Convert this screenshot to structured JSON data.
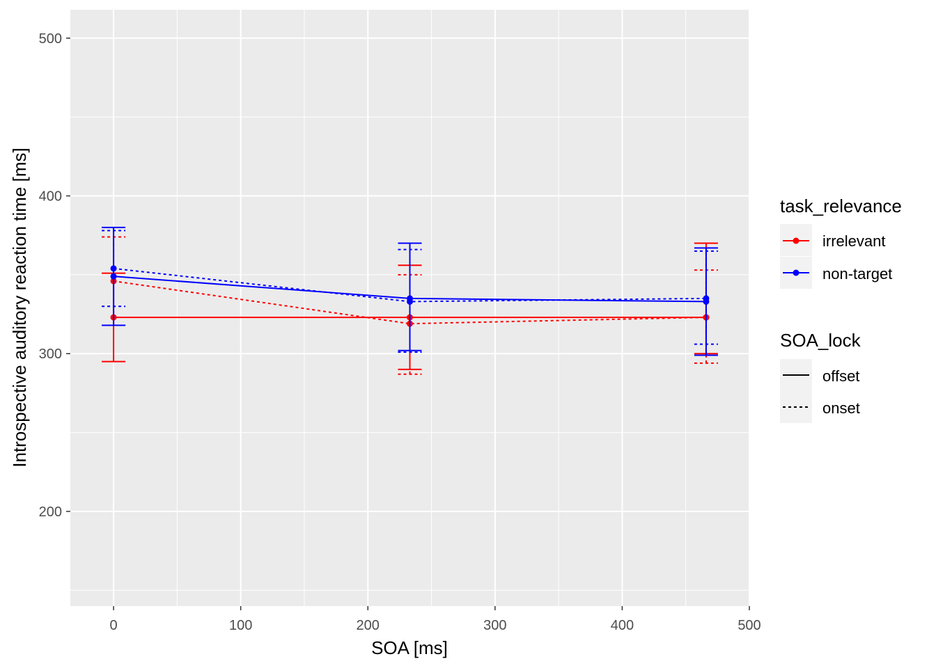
{
  "chart_data": {
    "type": "line",
    "title": "",
    "xlabel": "SOA [ms]",
    "ylabel": "Introspective auditory reaction time [ms]",
    "xlim": [
      -34,
      500
    ],
    "ylim": [
      140,
      518
    ],
    "x_ticks": [
      0,
      100,
      200,
      300,
      400,
      500
    ],
    "x_tick_labels": [
      "0",
      "100",
      "200",
      "300",
      "400",
      "500"
    ],
    "y_ticks": [
      200,
      300,
      400,
      500
    ],
    "y_tick_labels": [
      "200",
      "300",
      "400",
      "500"
    ],
    "grid": true,
    "legend": {
      "placement": "right",
      "task_relevance": {
        "title": "task_relevance",
        "items": [
          {
            "label": "irrelevant",
            "color": "#ff0000"
          },
          {
            "label": "non-target",
            "color": "#0000ff"
          }
        ]
      },
      "soa_lock": {
        "title": "SOA_lock",
        "items": [
          {
            "label": "offset",
            "linestyle": "solid"
          },
          {
            "label": "onset",
            "linestyle": "dashed"
          }
        ]
      }
    },
    "series": [
      {
        "name": "irrelevant / offset",
        "task_relevance": "irrelevant",
        "soa_lock": "offset",
        "color": "#ff0000",
        "linestyle": "solid",
        "x": [
          0,
          233,
          466
        ],
        "y": [
          323,
          323,
          323
        ],
        "ymin": [
          295,
          290,
          300
        ],
        "ymax": [
          351,
          356,
          370
        ]
      },
      {
        "name": "irrelevant / onset",
        "task_relevance": "irrelevant",
        "soa_lock": "onset",
        "color": "#ff0000",
        "linestyle": "dashed",
        "x": [
          0,
          233,
          466
        ],
        "y": [
          346,
          319,
          323
        ],
        "ymin": [
          318,
          287,
          294
        ],
        "ymax": [
          374,
          350,
          353
        ]
      },
      {
        "name": "non-target / offset",
        "task_relevance": "non-target",
        "soa_lock": "offset",
        "color": "#0000ff",
        "linestyle": "solid",
        "x": [
          0,
          233,
          466
        ],
        "y": [
          349,
          335,
          333
        ],
        "ymin": [
          318,
          302,
          299
        ],
        "ymax": [
          380,
          370,
          367
        ]
      },
      {
        "name": "non-target / onset",
        "task_relevance": "non-target",
        "soa_lock": "onset",
        "color": "#0000ff",
        "linestyle": "dashed",
        "x": [
          0,
          233,
          466
        ],
        "y": [
          354,
          333,
          335
        ],
        "ymin": [
          330,
          301,
          306
        ],
        "ymax": [
          378,
          366,
          365
        ]
      }
    ]
  }
}
